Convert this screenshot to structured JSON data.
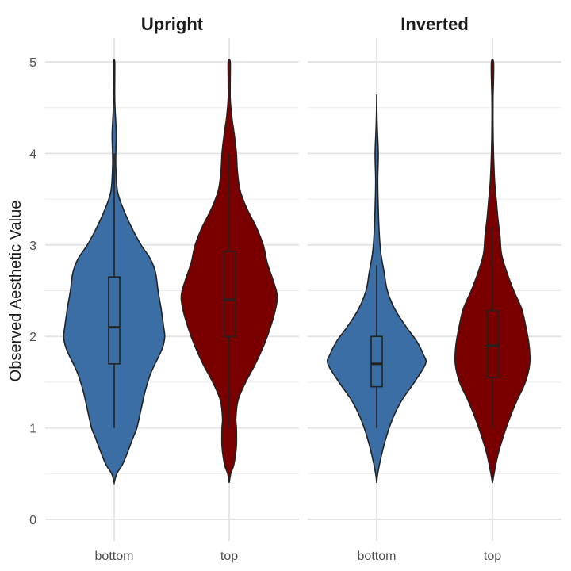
{
  "chart_data": {
    "type": "violin",
    "ylabel": "Observed Aesthetic Value",
    "ylim": [
      0,
      5
    ],
    "y_ticks": [
      "0",
      "1",
      "2",
      "3",
      "4",
      "5"
    ],
    "categories": [
      "bottom",
      "top"
    ],
    "colors": {
      "bottom": "#3a6ea5",
      "top": "#7a0000"
    },
    "grid": true,
    "panels": [
      {
        "title": "Upright",
        "violins": [
          {
            "category": "bottom",
            "density": [
              [
                0.4,
                0.0
              ],
              [
                0.5,
                0.05
              ],
              [
                0.6,
                0.16
              ],
              [
                0.75,
                0.27
              ],
              [
                0.9,
                0.37
              ],
              [
                1.0,
                0.44
              ],
              [
                1.2,
                0.52
              ],
              [
                1.4,
                0.6
              ],
              [
                1.6,
                0.71
              ],
              [
                1.8,
                0.88
              ],
              [
                1.9,
                0.95
              ],
              [
                2.0,
                0.98
              ],
              [
                2.1,
                0.96
              ],
              [
                2.3,
                0.91
              ],
              [
                2.5,
                0.85
              ],
              [
                2.7,
                0.8
              ],
              [
                2.85,
                0.7
              ],
              [
                3.0,
                0.52
              ],
              [
                3.2,
                0.33
              ],
              [
                3.4,
                0.17
              ],
              [
                3.6,
                0.06
              ],
              [
                3.9,
                0.03
              ],
              [
                4.2,
                0.04
              ],
              [
                4.45,
                0.02
              ],
              [
                4.6,
                0.01
              ],
              [
                4.8,
                0.01
              ],
              [
                5.0,
                0.01
              ]
            ],
            "box": {
              "min": 1.0,
              "q1": 1.7,
              "median": 2.1,
              "q3": 2.65,
              "max": 4.0
            }
          },
          {
            "category": "top",
            "density": [
              [
                0.4,
                0.0
              ],
              [
                0.5,
                0.03
              ],
              [
                0.6,
                0.09
              ],
              [
                0.8,
                0.14
              ],
              [
                1.0,
                0.14
              ],
              [
                1.1,
                0.13
              ],
              [
                1.3,
                0.17
              ],
              [
                1.5,
                0.32
              ],
              [
                1.7,
                0.51
              ],
              [
                1.9,
                0.67
              ],
              [
                2.1,
                0.8
              ],
              [
                2.3,
                0.9
              ],
              [
                2.45,
                0.93
              ],
              [
                2.6,
                0.86
              ],
              [
                2.8,
                0.74
              ],
              [
                3.0,
                0.66
              ],
              [
                3.2,
                0.52
              ],
              [
                3.4,
                0.34
              ],
              [
                3.6,
                0.21
              ],
              [
                3.8,
                0.16
              ],
              [
                4.0,
                0.14
              ],
              [
                4.2,
                0.1
              ],
              [
                4.4,
                0.05
              ],
              [
                4.6,
                0.02
              ],
              [
                4.8,
                0.02
              ],
              [
                5.0,
                0.02
              ]
            ],
            "box": {
              "min": 1.0,
              "q1": 2.0,
              "median": 2.4,
              "q3": 2.93,
              "max": 4.0
            }
          }
        ]
      },
      {
        "title": "Inverted",
        "violins": [
          {
            "category": "bottom",
            "density": [
              [
                0.4,
                0.0
              ],
              [
                0.5,
                0.02
              ],
              [
                0.7,
                0.09
              ],
              [
                0.9,
                0.18
              ],
              [
                1.1,
                0.3
              ],
              [
                1.3,
                0.47
              ],
              [
                1.5,
                0.71
              ],
              [
                1.7,
                0.92
              ],
              [
                1.8,
                0.88
              ],
              [
                1.95,
                0.75
              ],
              [
                2.1,
                0.56
              ],
              [
                2.3,
                0.34
              ],
              [
                2.5,
                0.2
              ],
              [
                2.7,
                0.14
              ],
              [
                2.9,
                0.08
              ],
              [
                3.1,
                0.05
              ],
              [
                3.4,
                0.03
              ],
              [
                3.7,
                0.02
              ],
              [
                4.0,
                0.03
              ],
              [
                4.3,
                0.01
              ],
              [
                4.6,
                0.0
              ]
            ],
            "box": {
              "min": 1.0,
              "q1": 1.45,
              "median": 1.7,
              "q3": 2.0,
              "max": 2.78
            }
          },
          {
            "category": "top",
            "density": [
              [
                0.4,
                0.0
              ],
              [
                0.5,
                0.03
              ],
              [
                0.7,
                0.1
              ],
              [
                0.9,
                0.2
              ],
              [
                1.1,
                0.32
              ],
              [
                1.3,
                0.46
              ],
              [
                1.5,
                0.62
              ],
              [
                1.7,
                0.7
              ],
              [
                1.9,
                0.69
              ],
              [
                2.1,
                0.63
              ],
              [
                2.3,
                0.55
              ],
              [
                2.5,
                0.4
              ],
              [
                2.7,
                0.27
              ],
              [
                2.9,
                0.17
              ],
              [
                3.1,
                0.14
              ],
              [
                3.3,
                0.1
              ],
              [
                3.5,
                0.07
              ],
              [
                3.7,
                0.04
              ],
              [
                4.0,
                0.02
              ],
              [
                4.3,
                0.01
              ],
              [
                4.6,
                0.01
              ],
              [
                4.8,
                0.02
              ],
              [
                5.0,
                0.02
              ]
            ],
            "box": {
              "min": 1.0,
              "q1": 1.55,
              "median": 1.9,
              "q3": 2.28,
              "max": 3.2
            }
          }
        ]
      }
    ]
  }
}
